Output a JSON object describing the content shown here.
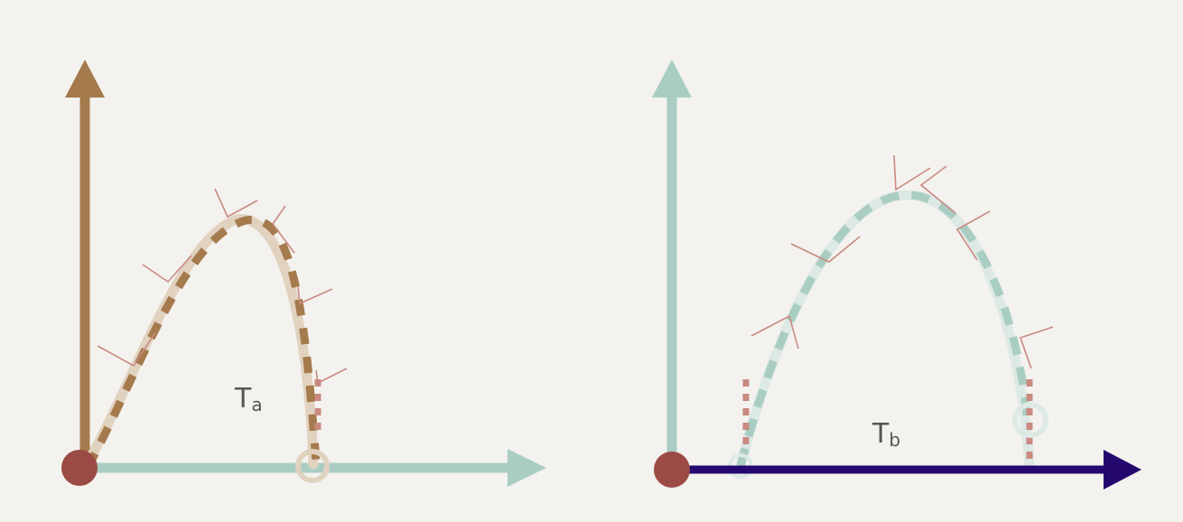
{
  "colors": {
    "background": "#f3f2ee",
    "brown": "#a57a4c",
    "brown_light": "#e1d2c0",
    "teal": "#aacdc3",
    "teal_light": "#dde9e4",
    "navy": "#25086e",
    "origin": "#9c4a45",
    "arrow": "#c98a82"
  },
  "panel_a": {
    "label_main": "T",
    "label_sub": "a",
    "vertical_axis_color": "brown",
    "horizontal_axis_color": "teal"
  },
  "panel_b": {
    "label_main": "T",
    "label_sub": "b",
    "vertical_axis_color": "teal",
    "horizontal_axis_color": "navy"
  }
}
